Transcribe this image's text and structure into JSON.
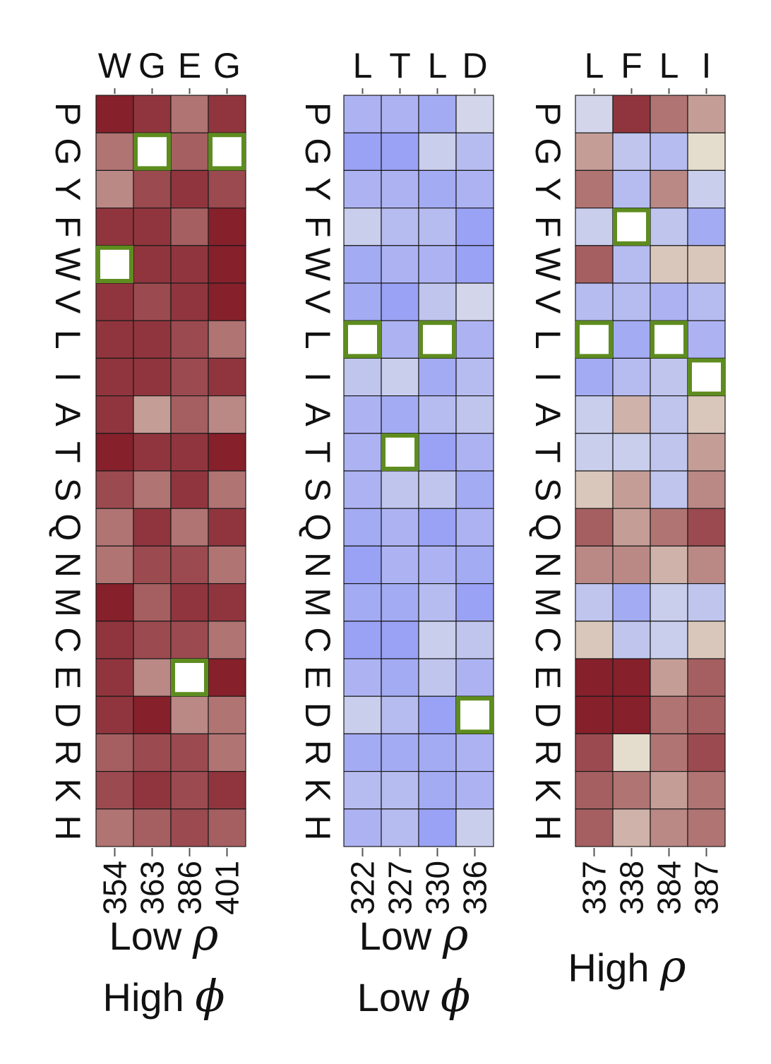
{
  "chart_data": [
    {
      "type": "heatmap",
      "rows": [
        "P",
        "G",
        "Y",
        "F",
        "W",
        "V",
        "L",
        "I",
        "A",
        "T",
        "S",
        "Q",
        "N",
        "M",
        "C",
        "E",
        "D",
        "R",
        "K",
        "H"
      ],
      "top_labels": [
        "W",
        "G",
        "E",
        "G"
      ],
      "bottom_labels": [
        "354",
        "363",
        "386",
        "401"
      ],
      "caption_lines": [
        "Low ρ",
        "High ϕ"
      ],
      "values": [
        [
          9,
          8,
          5,
          8
        ],
        [
          5,
          -99,
          6,
          -99
        ],
        [
          4,
          7,
          8,
          7
        ],
        [
          8,
          8,
          6,
          9
        ],
        [
          -99,
          8,
          8,
          9
        ],
        [
          8,
          7,
          8,
          9
        ],
        [
          8,
          8,
          7,
          5
        ],
        [
          8,
          8,
          7,
          8
        ],
        [
          8,
          3,
          6,
          4
        ],
        [
          9,
          8,
          8,
          9
        ],
        [
          7,
          5,
          8,
          5
        ],
        [
          5,
          8,
          5,
          8
        ],
        [
          5,
          7,
          7,
          5
        ],
        [
          9,
          6,
          8,
          8
        ],
        [
          8,
          7,
          7,
          5
        ],
        [
          8,
          4,
          -99,
          9
        ],
        [
          8,
          9,
          4,
          5
        ],
        [
          6,
          7,
          7,
          5
        ],
        [
          7,
          8,
          7,
          8
        ],
        [
          5,
          6,
          7,
          6
        ]
      ]
    },
    {
      "type": "heatmap",
      "rows": [
        "P",
        "G",
        "Y",
        "F",
        "W",
        "V",
        "L",
        "I",
        "A",
        "T",
        "S",
        "Q",
        "N",
        "M",
        "C",
        "E",
        "D",
        "R",
        "K",
        "H"
      ],
      "top_labels": [
        "L",
        "T",
        "L",
        "D"
      ],
      "bottom_labels": [
        "322",
        "327",
        "330",
        "336"
      ],
      "caption_lines": [
        "Low ρ",
        "Low ϕ"
      ],
      "values": [
        [
          -5,
          -5,
          -6,
          -1
        ],
        [
          -7,
          -7,
          -2,
          -4
        ],
        [
          -5,
          -5,
          -6,
          -5
        ],
        [
          -2,
          -4,
          -4,
          -7
        ],
        [
          -6,
          -5,
          -5,
          -7
        ],
        [
          -6,
          -7,
          -3,
          -1
        ],
        [
          -99,
          -5,
          -99,
          -5
        ],
        [
          -3,
          -2,
          -6,
          -4
        ],
        [
          -5,
          -6,
          -4,
          -3
        ],
        [
          -5,
          -99,
          -7,
          -5
        ],
        [
          -5,
          -3,
          -3,
          -6
        ],
        [
          -6,
          -5,
          -7,
          -5
        ],
        [
          -7,
          -5,
          -5,
          -6
        ],
        [
          -6,
          -6,
          -4,
          -7
        ],
        [
          -7,
          -7,
          -2,
          -3
        ],
        [
          -5,
          -6,
          -3,
          -5
        ],
        [
          -2,
          -4,
          -7,
          -99
        ],
        [
          -6,
          -6,
          -6,
          -5
        ],
        [
          -4,
          -4,
          -6,
          -5
        ],
        [
          -5,
          -4,
          -7,
          -2
        ]
      ]
    },
    {
      "type": "heatmap",
      "rows": [
        "P",
        "G",
        "Y",
        "F",
        "W",
        "V",
        "L",
        "I",
        "A",
        "T",
        "S",
        "Q",
        "N",
        "M",
        "C",
        "E",
        "D",
        "R",
        "K",
        "H"
      ],
      "top_labels": [
        "L",
        "F",
        "L",
        "I"
      ],
      "bottom_labels": [
        "337",
        "338",
        "384",
        "387"
      ],
      "caption_lines": [
        "High ρ"
      ],
      "values": [
        [
          -1,
          8,
          5,
          3
        ],
        [
          3,
          -3,
          -4,
          0
        ],
        [
          5,
          -4,
          4,
          -2
        ],
        [
          -2,
          -99,
          -3,
          -6
        ],
        [
          6,
          -4,
          1,
          1
        ],
        [
          -4,
          -4,
          -5,
          -4
        ],
        [
          -99,
          -6,
          -99,
          -5
        ],
        [
          -6,
          -4,
          -3,
          -99
        ],
        [
          -2,
          2,
          -3,
          1
        ],
        [
          -2,
          -2,
          -3,
          3
        ],
        [
          1,
          3,
          -3,
          4
        ],
        [
          6,
          3,
          5,
          7
        ],
        [
          4,
          4,
          2,
          4
        ],
        [
          -3,
          -6,
          -2,
          -3
        ],
        [
          1,
          -3,
          -2,
          1
        ],
        [
          9,
          9,
          3,
          6
        ],
        [
          9,
          9,
          5,
          6
        ],
        [
          7,
          0,
          5,
          7
        ],
        [
          6,
          5,
          3,
          5
        ],
        [
          6,
          2,
          4,
          5
        ]
      ]
    }
  ],
  "colors": {
    "highlight": "#5e8c1f",
    "grid": "#1a1a1a",
    "empty": "#ffffff"
  }
}
